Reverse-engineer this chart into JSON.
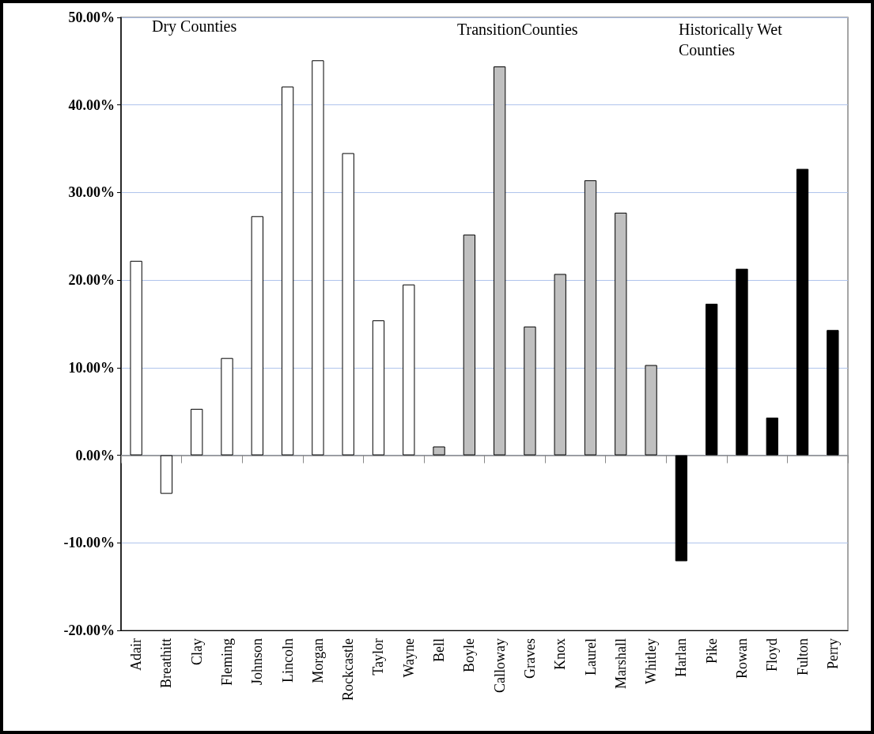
{
  "chart_data": {
    "type": "bar",
    "categories": [
      "Adair",
      "Breathitt",
      "Clay",
      "Fleming",
      "Johnson",
      "Lincoln",
      "Morgan",
      "Rockcastle",
      "Taylor",
      "Wayne",
      "Bell",
      "Boyle",
      "Calloway",
      "Graves",
      "Knox",
      "Laurel",
      "Marshall",
      "Whitley",
      "Harlan",
      "Pike",
      "Rowan",
      "Floyd",
      "Fulton",
      "Perry"
    ],
    "values": [
      22.2,
      -4.4,
      5.3,
      11.1,
      27.3,
      42.1,
      45.1,
      34.5,
      15.4,
      19.5,
      1.0,
      25.2,
      44.4,
      14.7,
      20.7,
      31.4,
      27.7,
      10.3,
      -12.1,
      17.3,
      21.3,
      4.3,
      32.7,
      14.3
    ],
    "colors": [
      "#ffffff",
      "#ffffff",
      "#ffffff",
      "#ffffff",
      "#ffffff",
      "#ffffff",
      "#ffffff",
      "#ffffff",
      "#ffffff",
      "#ffffff",
      "#c0c0c0",
      "#c0c0c0",
      "#c0c0c0",
      "#c0c0c0",
      "#c0c0c0",
      "#c0c0c0",
      "#c0c0c0",
      "#c0c0c0",
      "#000000",
      "#000000",
      "#000000",
      "#000000",
      "#000000",
      "#000000"
    ],
    "ylim": [
      -20,
      50
    ],
    "yticks": [
      {
        "value": -20,
        "label": "-20.00%"
      },
      {
        "value": -10,
        "label": "-10.00%"
      },
      {
        "value": 0,
        "label": "0.00%"
      },
      {
        "value": 10,
        "label": "10.00%"
      },
      {
        "value": 20,
        "label": "20.00%"
      },
      {
        "value": 30,
        "label": "30.00%"
      },
      {
        "value": 40,
        "label": "40.00%"
      },
      {
        "value": 50,
        "label": "50.00%"
      }
    ],
    "grid": "y",
    "annotations": [
      "Dry Counties",
      "TransitionCounties",
      "Historically Wet\nCounties"
    ]
  }
}
